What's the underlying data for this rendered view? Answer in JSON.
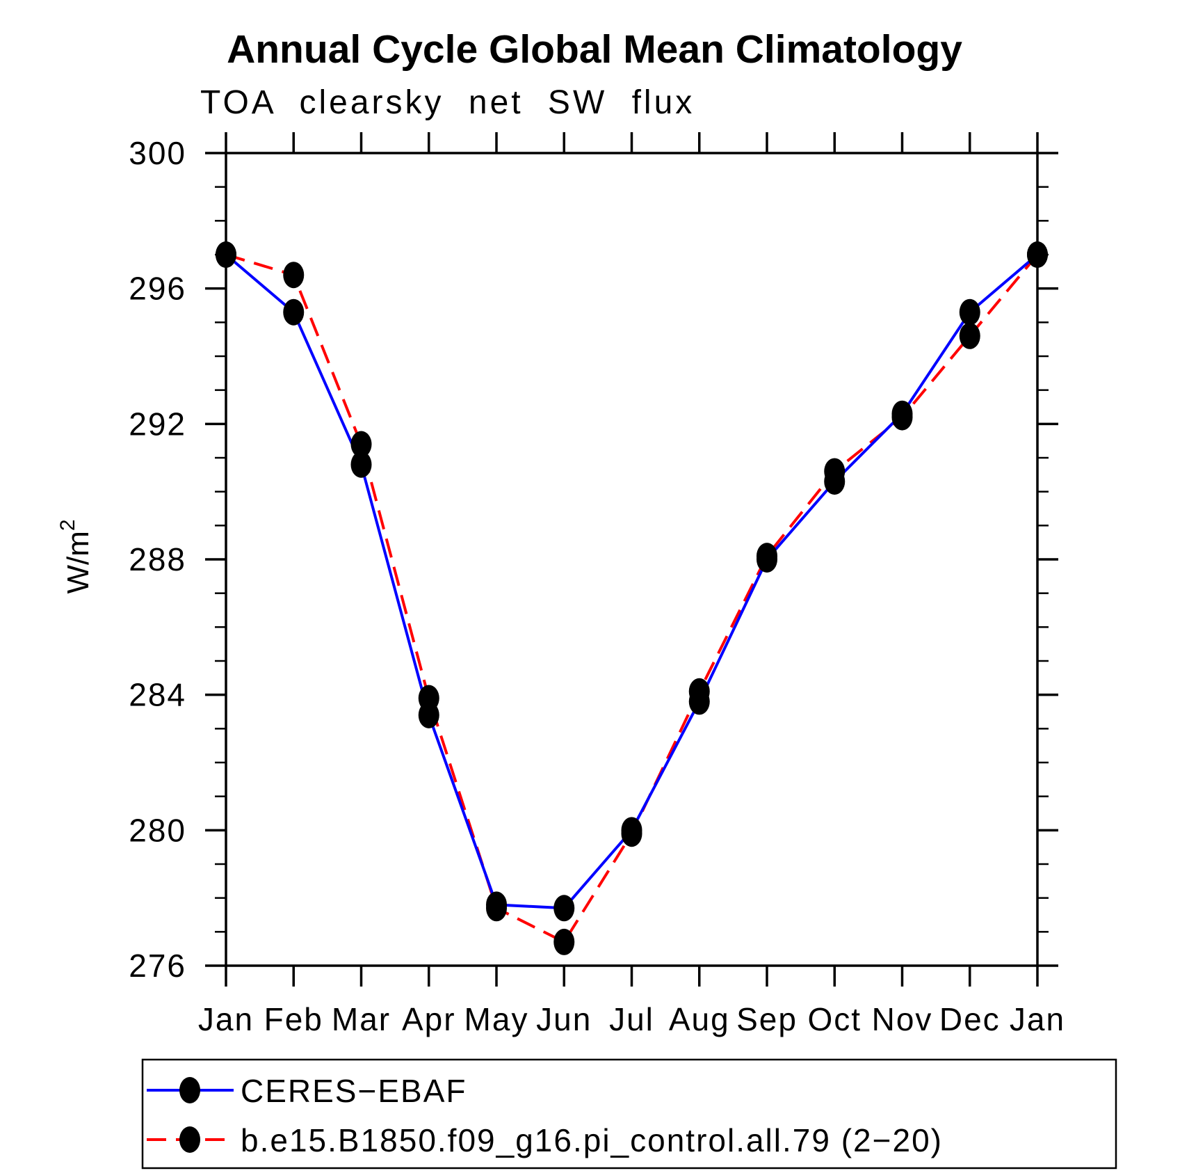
{
  "title": "Annual Cycle Global Mean Climatology",
  "subtitle": "TOA clearsky net SW flux",
  "chart_data": {
    "type": "line",
    "title": "Annual Cycle Global Mean Climatology",
    "subtitle": "TOA clearsky net SW flux",
    "xlabel": "",
    "ylabel": "W/m²",
    "ylim": [
      276,
      300
    ],
    "y_major_ticks": [
      276,
      280,
      284,
      288,
      292,
      296,
      300
    ],
    "y_minor_step": 1,
    "grid": false,
    "legend_position": "bottom",
    "categories": [
      "Jan",
      "Feb",
      "Mar",
      "Apr",
      "May",
      "Jun",
      "Jul",
      "Aug",
      "Sep",
      "Oct",
      "Nov",
      "Dec",
      "Jan"
    ],
    "marker_color": "#000000",
    "series": [
      {
        "name": "CERES−EBAF",
        "color": "#0000ff",
        "style": "solid",
        "marker": "filled-circle",
        "values": [
          297.0,
          295.3,
          290.8,
          283.4,
          277.8,
          277.7,
          280.0,
          283.8,
          288.0,
          290.3,
          292.3,
          295.3,
          297.0
        ]
      },
      {
        "name": "b.e15.B1850.f09_g16.pi_control.all.79 (2−20)",
        "color": "#ff0000",
        "style": "dashed",
        "marker": "filled-circle",
        "values": [
          297.0,
          296.4,
          291.4,
          283.9,
          277.7,
          276.7,
          279.9,
          284.1,
          288.1,
          290.6,
          292.2,
          294.6,
          297.0
        ]
      }
    ]
  }
}
